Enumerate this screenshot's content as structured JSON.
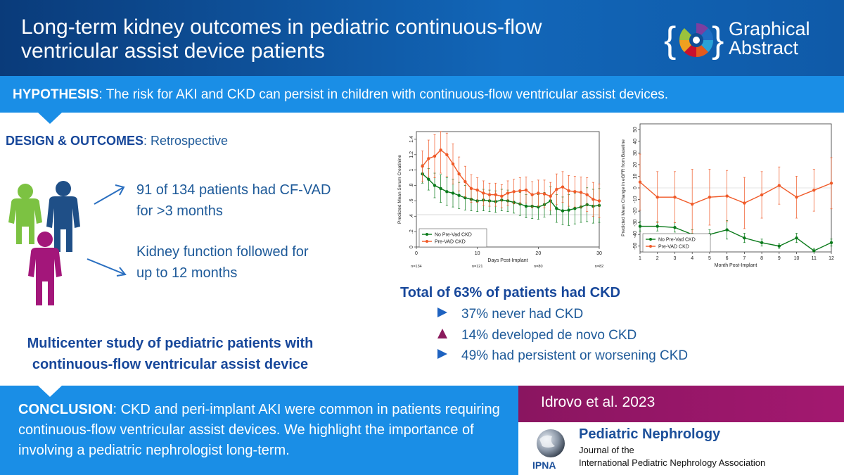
{
  "header": {
    "title": "Long-term kidney outcomes in pediatric continuous-flow ventricular assist device patients",
    "badge_line1": "Graphical",
    "badge_line2": "Abstract"
  },
  "hypothesis": {
    "label": "HYPOTHESIS",
    "text": ": The risk for AKI and CKD can persist in children with continuous-flow ventricular assist devices."
  },
  "design": {
    "label": "DESIGN & OUTCOMES",
    "text": ": Retrospective"
  },
  "bullets": [
    {
      "line1": "91 of 134 patients had CF-VAD",
      "line2": "for >3 months"
    },
    {
      "line1": "Kidney function followed for",
      "line2": "up to 12 months"
    }
  ],
  "multicenter": {
    "line1": "Multicenter study of pediatric patients with",
    "line2": "continuous-flow ventricular assist device"
  },
  "outcomes": {
    "total": "Total of 63% of patients had CKD",
    "items": [
      {
        "text": "37% never had CKD",
        "marker": "triangle-right",
        "color": "#1e62c0"
      },
      {
        "text": "14% developed de novo CKD",
        "marker": "triangle-up",
        "color": "#8a1a5c"
      },
      {
        "text": "49% had persistent or worsening CKD",
        "marker": "triangle-right",
        "color": "#1e62c0"
      }
    ]
  },
  "conclusion": {
    "label": "CONCLUSION",
    "text": ": CKD and peri-implant AKI were common in patients requiring continuous-flow ventricular assist devices. We highlight the importance of involving a pediatric nephrologist long-term."
  },
  "reference": "Idrovo et al. 2023",
  "journal": {
    "name": "Pediatric Nephrology",
    "sub1": "Journal of the",
    "sub2": "International  Pediatric Nephrology Association",
    "logo_text": "IPNA"
  },
  "chart_data": [
    {
      "type": "line",
      "xlabel": "Days Post-Implant",
      "ylabel": "Predicted Mean Serum Creatinine",
      "xlim": [
        0,
        30
      ],
      "ylim": [
        0,
        1.5
      ],
      "xticks": [
        "0",
        "10",
        "20",
        "30"
      ],
      "yticks": [
        "0",
        ".2",
        ".4",
        ".6",
        ".8",
        "1",
        "1.2",
        "1.4"
      ],
      "reference_line": 0.42,
      "n_labels": [
        "n=134",
        "n=121",
        "n=80",
        "n=82"
      ],
      "legend": [
        "No Pre-Vad CKD",
        "Pre-VAD CKD"
      ],
      "series": [
        {
          "name": "No Pre-Vad CKD",
          "color": "#0a7a1a",
          "x": [
            1,
            2,
            3,
            4,
            5,
            6,
            7,
            8,
            9,
            10,
            11,
            12,
            13,
            14,
            15,
            16,
            17,
            18,
            19,
            20,
            21,
            22,
            23,
            24,
            25,
            26,
            27,
            28,
            29,
            30
          ],
          "values": [
            0.95,
            0.88,
            0.8,
            0.76,
            0.72,
            0.7,
            0.67,
            0.64,
            0.62,
            0.6,
            0.61,
            0.6,
            0.59,
            0.61,
            0.6,
            0.58,
            0.56,
            0.53,
            0.53,
            0.52,
            0.55,
            0.6,
            0.5,
            0.47,
            0.48,
            0.5,
            0.52,
            0.55,
            0.53,
            0.54
          ],
          "err": [
            0.12,
            0.14,
            0.16,
            0.18,
            0.18,
            0.18,
            0.17,
            0.16,
            0.15,
            0.14,
            0.14,
            0.14,
            0.14,
            0.14,
            0.14,
            0.14,
            0.15,
            0.15,
            0.16,
            0.16,
            0.16,
            0.18,
            0.18,
            0.18,
            0.2,
            0.2,
            0.2,
            0.22,
            0.22,
            0.22
          ]
        },
        {
          "name": "Pre-VAD CKD",
          "color": "#f05a28",
          "x": [
            1,
            2,
            3,
            4,
            5,
            6,
            7,
            8,
            9,
            10,
            11,
            12,
            13,
            14,
            15,
            16,
            17,
            18,
            19,
            20,
            21,
            22,
            23,
            24,
            25,
            26,
            27,
            28,
            29,
            30
          ],
          "values": [
            1.05,
            1.15,
            1.18,
            1.26,
            1.2,
            1.08,
            0.95,
            0.85,
            0.76,
            0.74,
            0.7,
            0.68,
            0.68,
            0.66,
            0.7,
            0.72,
            0.73,
            0.74,
            0.68,
            0.7,
            0.69,
            0.66,
            0.75,
            0.78,
            0.73,
            0.72,
            0.71,
            0.68,
            0.62,
            0.6
          ],
          "err": [
            0.2,
            0.24,
            0.28,
            0.3,
            0.28,
            0.26,
            0.22,
            0.2,
            0.18,
            0.16,
            0.16,
            0.15,
            0.15,
            0.15,
            0.16,
            0.16,
            0.17,
            0.17,
            0.17,
            0.17,
            0.18,
            0.18,
            0.2,
            0.2,
            0.2,
            0.2,
            0.2,
            0.22,
            0.22,
            0.22
          ]
        }
      ]
    },
    {
      "type": "line",
      "xlabel": "Month Post-Implant",
      "ylabel": "Predicted Mean Change in eGFR from Baseline",
      "xlim": [
        1,
        12
      ],
      "ylim": [
        -55,
        55
      ],
      "xticks": [
        "1",
        "2",
        "3",
        "4",
        "5",
        "6",
        "7",
        "8",
        "9",
        "10",
        "11",
        "12"
      ],
      "yticks": [
        "-50",
        "-40",
        "-30",
        "-20",
        "-10",
        "0",
        "10",
        "20",
        "30",
        "40",
        "50"
      ],
      "legend": [
        "No Pre-Vad CKD",
        "Pre-VAD CKD"
      ],
      "series": [
        {
          "name": "No Pre-Vad CKD",
          "color": "#0a7a1a",
          "x": [
            1,
            2,
            3,
            4,
            5,
            6,
            7,
            8,
            9,
            10,
            11,
            12
          ],
          "values": [
            -33,
            -33,
            -34,
            -40,
            -40,
            -36,
            -43,
            -47,
            -50,
            -43,
            -54,
            -47
          ],
          "err": [
            4,
            4,
            4,
            4,
            4,
            8,
            4,
            3,
            2,
            4,
            2,
            3
          ]
        },
        {
          "name": "Pre-VAD CKD",
          "color": "#f05a28",
          "x": [
            1,
            2,
            3,
            4,
            5,
            6,
            7,
            8,
            9,
            10,
            11,
            12
          ],
          "values": [
            5,
            -8,
            -8,
            -14,
            -8,
            -7,
            -13,
            -6,
            2,
            -8,
            -2,
            4
          ],
          "err": [
            24,
            22,
            22,
            30,
            24,
            22,
            22,
            20,
            16,
            18,
            18,
            22
          ]
        }
      ]
    }
  ]
}
